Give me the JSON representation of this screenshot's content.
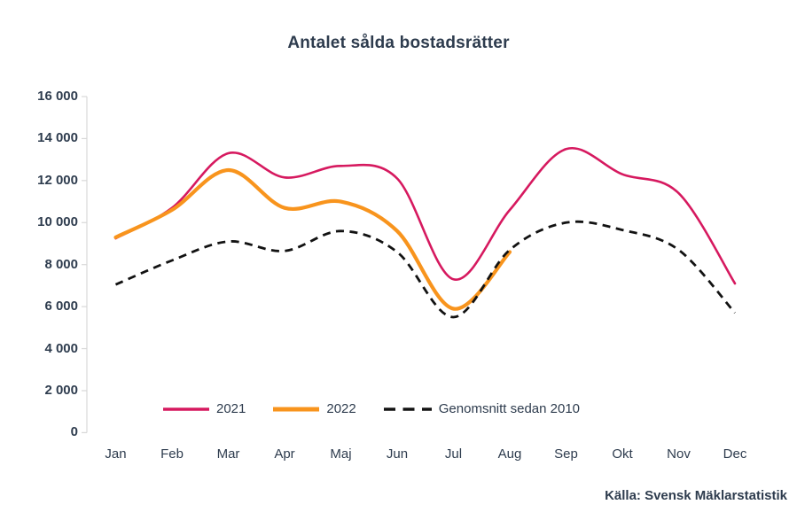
{
  "title": "Antalet sålda bostadsrätter",
  "source": "Källa: Svensk Mäklarstatistik",
  "colors": {
    "series_2021": "#d6195f",
    "series_2022": "#f8941d",
    "series_avg": "#121212",
    "text": "#2e3c4e",
    "axis": "#d8d8d8"
  },
  "chart_data": {
    "type": "line",
    "title": "Antalet sålda bostadsrätter",
    "categories": [
      "Jan",
      "Feb",
      "Mar",
      "Apr",
      "Maj",
      "Jun",
      "Jul",
      "Aug",
      "Sep",
      "Okt",
      "Nov",
      "Dec"
    ],
    "y_ticks": [
      0,
      2000,
      4000,
      6000,
      8000,
      10000,
      12000,
      14000,
      16000
    ],
    "y_tick_labels": [
      "0",
      "2 000",
      "4 000",
      "6 000",
      "8 000",
      "10 000",
      "12 000",
      "14 000",
      "16 000"
    ],
    "ylim": [
      0,
      16000
    ],
    "xlabel": "",
    "ylabel": "",
    "grid": false,
    "legend_position": "bottom-inside",
    "series": [
      {
        "name": "2021",
        "style": "solid",
        "color": "#d6195f",
        "width": 2.6,
        "values": [
          9250,
          10700,
          13300,
          12150,
          12700,
          12100,
          7300,
          10600,
          13500,
          12300,
          11400,
          7100
        ]
      },
      {
        "name": "2022",
        "style": "solid",
        "color": "#f8941d",
        "width": 4.2,
        "values": [
          9300,
          10600,
          12500,
          10700,
          11000,
          9600,
          5900,
          8600,
          null,
          null,
          null,
          null
        ]
      },
      {
        "name": "Genomsnitt sedan 2010",
        "style": "dashed",
        "color": "#121212",
        "width": 2.8,
        "values": [
          7050,
          8200,
          9100,
          8650,
          9600,
          8600,
          5500,
          8700,
          10000,
          9650,
          8700,
          5700
        ]
      }
    ]
  }
}
